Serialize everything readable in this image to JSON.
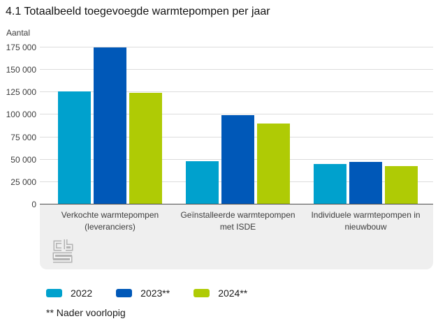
{
  "title": "4.1 Totaalbeeld toegevoegde warmtepompen per jaar",
  "y_axis_unit_label": "Aantal",
  "footnote": "** Nader voorlopig",
  "logo_name": "cbs-logo",
  "colors": {
    "series_2022": "#00a1cd",
    "series_2023": "#0058b8",
    "series_2024": "#afcb05",
    "gridline": "#dcdcdc",
    "axis_line": "#4d4d4d",
    "category_panel_bg": "#efefef",
    "logo_gray": "#b3b3b3"
  },
  "chart_data": {
    "type": "bar",
    "title": "4.1 Totaalbeeld toegevoegde warmtepompen per jaar",
    "ylabel": "Aantal",
    "categories": [
      "Verkochte warmtepompen\n(leveranciers)",
      "Geïnstalleerde warmtepompen\nmet ISDE",
      "Individuele warmtepompen in\nnieuwbouw"
    ],
    "series": [
      {
        "name": "2022",
        "color": "#00a1cd",
        "values": [
          126000,
          48500,
          45000
        ]
      },
      {
        "name": "2023**",
        "color": "#0058b8",
        "values": [
          175000,
          99500,
          47500
        ]
      },
      {
        "name": "2024**",
        "color": "#afcb05",
        "values": [
          124500,
          90000,
          43000
        ]
      }
    ],
    "ylim": [
      0,
      175000
    ],
    "ytick_interval": 25000,
    "ytick_labels": [
      "0",
      "25 000",
      "50 000",
      "75 000",
      "100 000",
      "125 000",
      "150 000",
      "175 000"
    ],
    "grid": true,
    "legend_position": "bottom"
  }
}
